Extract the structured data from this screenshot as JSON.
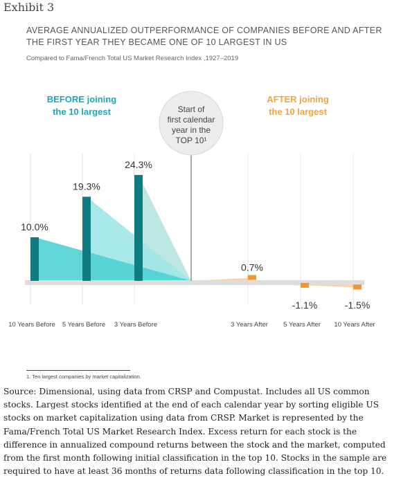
{
  "exhibit_label": "Exhibit 3",
  "footnote": "1. Ten largest companies by market capitalization.",
  "source": "Source: Dimensional, using data from CRSP and Compustat. Includes all US common stocks. Largest stocks identified at the end of each calendar year by sorting eligible US stocks on market capitalization using data from CRSP. Market is represented by the Fama/French Total US Market Research Index. Excess return for each stock is the difference in annualized compound returns between the stock and the market, computed from the first month following initial classification in the top 10. Stocks in the sample are required to have at least 36 months of returns data following classification in the top 10.",
  "colors": {
    "before_bar": "#0e7c80",
    "before_fill_1": "#4fd1d4",
    "before_fill_2": "#9ee6e6",
    "before_fill_3": "#b6e4df",
    "after_bar": "#f2962f",
    "after_fill": "#f7c07a",
    "baseline": "#dddddd",
    "before_label": "#16a9bd",
    "after_label": "#f5a23a"
  },
  "chart_data": {
    "type": "bar",
    "title": "AVERAGE ANNUALIZED OUTPERFORMANCE OF COMPANIES BEFORE AND AFTER THE FIRST YEAR THEY BECAME ONE OF 10 LARGEST IN US",
    "subtitle": "Compared to Fama/French Total US Market Research Index ,1927–2019",
    "unit": "%",
    "center_label": "Start of first calendar year in the TOP 10¹",
    "groups": [
      {
        "label": "BEFORE joining the 10 largest"
      },
      {
        "label": "AFTER joining the 10 largest"
      }
    ],
    "categories": [
      "10 Years Before",
      "5 Years Before",
      "3 Years Before",
      "3 Years After",
      "5 Years After",
      "10 Years After"
    ],
    "values": [
      10.0,
      19.3,
      24.3,
      0.7,
      -1.1,
      -1.5
    ],
    "value_labels": [
      "10.0%",
      "19.3%",
      "24.3%",
      "0.7%",
      "-1.1%",
      "-1.5%"
    ],
    "ylim": [
      -3,
      26
    ],
    "grid": true
  }
}
